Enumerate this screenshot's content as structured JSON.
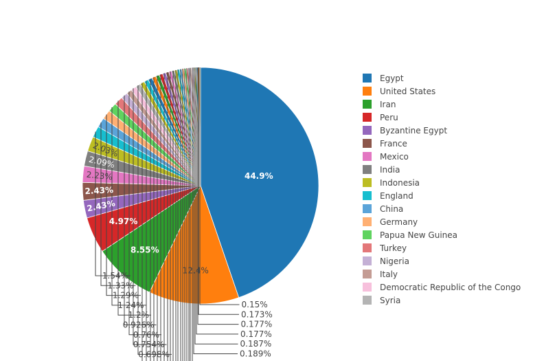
{
  "chart_data": {
    "type": "pie",
    "direction": "clockwise",
    "legend_position": "right",
    "labels": [
      "Egypt",
      "United States",
      "Iran",
      "Peru",
      "Byzantine Egypt",
      "France",
      "Mexico",
      "India",
      "Indonesia",
      "England",
      "China",
      "Germany",
      "Papua New Guinea",
      "Turkey",
      "Nigeria",
      "Italy",
      "Democratic Republic of the Congo",
      "Syria"
    ],
    "values": [
      44.9,
      12.4,
      8.55,
      4.97,
      2.43,
      2.43,
      2.23,
      2.09,
      2.03,
      1.54,
      1.33,
      1.29,
      1.24,
      1.2,
      0.926,
      0.76,
      0.754,
      0.698
    ],
    "text_labels": [
      "44.9%",
      "12.4%",
      "8.55%",
      "4.97%",
      "2.43%",
      "2.43%",
      "2.23%",
      "2.09%",
      "2.03%",
      "1.54%",
      "1.33%",
      "1.29%",
      "1.24%",
      "1.2%",
      "0.926%",
      "0.76%",
      "0.754%",
      "0.698%"
    ],
    "colors": [
      "#1f77b4",
      "#ff7f0e",
      "#2ca02c",
      "#d62728",
      "#9467bd",
      "#8c564b",
      "#e377c2",
      "#7f7f7f",
      "#bcbd22",
      "#17becf",
      "#5ba4d9",
      "#ffb073",
      "#5fd35f",
      "#e37779",
      "#c4b0d5",
      "#c49c94",
      "#f7c0dc",
      "#b4b4b4"
    ],
    "unlabeled_small_slices": {
      "values": [
        0.62,
        0.6,
        0.58,
        0.55,
        0.5,
        0.48,
        0.45,
        0.42,
        0.4,
        0.38,
        0.36,
        0.34,
        0.32,
        0.3,
        0.28,
        0.26,
        0.24,
        0.22,
        0.2,
        0.189,
        0.187,
        0.177,
        0.177,
        0.173,
        0.15
      ],
      "labeled": [
        "0.189%",
        "0.187%",
        "0.177%",
        "0.177%",
        "0.173%",
        "0.15%"
      ],
      "colors": [
        "#bcbd22",
        "#17becf",
        "#1f77b4",
        "#ff7f0e",
        "#2ca02c",
        "#d62728",
        "#9467bd",
        "#8c564b",
        "#e377c2",
        "#7f7f7f",
        "#bcbd22",
        "#17becf",
        "#5ba4d9",
        "#ffb073",
        "#5fd35f",
        "#e37779",
        "#c4b0d5",
        "#c49c94",
        "#f7c0dc",
        "#b4b4b4",
        "#bcbd22",
        "#17becf",
        "#1f77b4",
        "#ff7f0e",
        "#2ca02c"
      ]
    }
  }
}
